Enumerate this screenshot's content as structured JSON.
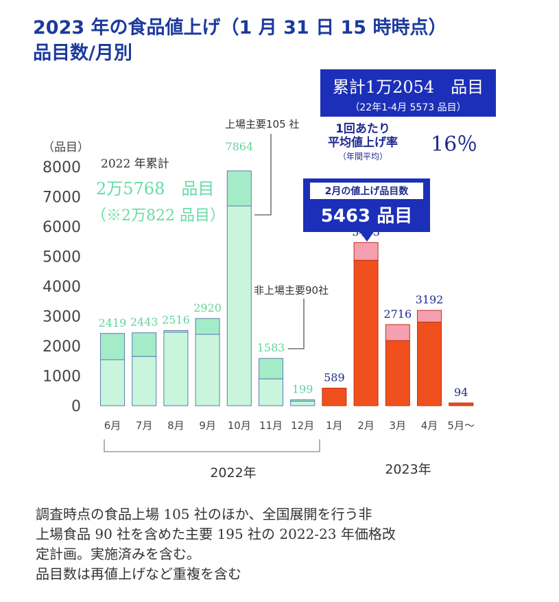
{
  "title": {
    "line1": "2023 年の食品値上げ（1 月 31 日 15 時時点）",
    "line2": "品目数/月別"
  },
  "total_box": {
    "main": "累計1万2054　品目",
    "sub": "（22年1-4月 5573 品目）"
  },
  "avg_rate": {
    "label1": "1回あたり",
    "label2": "平均値上げ率",
    "label3": "（年間平均）",
    "value": "16％"
  },
  "feb_box": {
    "label": "2月の値上げ品目数",
    "value": "5463 品目"
  },
  "year2022": {
    "label": "2022 年累計",
    "value": "2万5768　品目",
    "note": "（※2万822 品目）"
  },
  "annotations": {
    "listed": "上場主要105 社",
    "unlisted": "非上場主要90社"
  },
  "chart_data": {
    "type": "bar",
    "stacked": true,
    "title": "品目数/月別",
    "ylabel": "（品目）",
    "ylim": [
      0,
      8000
    ],
    "yticks": [
      0,
      1000,
      2000,
      3000,
      4000,
      5000,
      6000,
      7000,
      8000
    ],
    "categories": [
      "6月",
      "7月",
      "8月",
      "9月",
      "10月",
      "11月",
      "12月",
      "1月",
      "2月",
      "3月",
      "4月",
      "5月～"
    ],
    "totals": [
      2419,
      2443,
      2516,
      2920,
      7864,
      1583,
      199,
      589,
      5463,
      2716,
      3192,
      94
    ],
    "series": [
      {
        "name": "上場主要105社",
        "values": [
          1540,
          1650,
          2460,
          2390,
          6690,
          900,
          150,
          589,
          4870,
          2180,
          2800,
          60
        ]
      },
      {
        "name": "非上場主要90社",
        "values": [
          879,
          793,
          56,
          530,
          1174,
          683,
          49,
          0,
          593,
          536,
          392,
          34
        ]
      }
    ],
    "groups": [
      "2022年",
      "2023年"
    ],
    "colors": {
      "y2022_base": "#c8f5dc",
      "y2022_top": "#a4ecc8",
      "y2023_base": "#f0501e",
      "y2023_top": "#f5a0b0",
      "label2022": "#5fd49c",
      "label2023": "#1c2a8c"
    }
  },
  "footnote": [
    "調査時点の食品上場 105 社のほか、全国展開を行う非",
    "上場食品 90 社を含めた主要 195 社の 2022-23 年価格改",
    "定計画。実施済みを含む。",
    "品目数は再値上げなど重複を含む"
  ]
}
